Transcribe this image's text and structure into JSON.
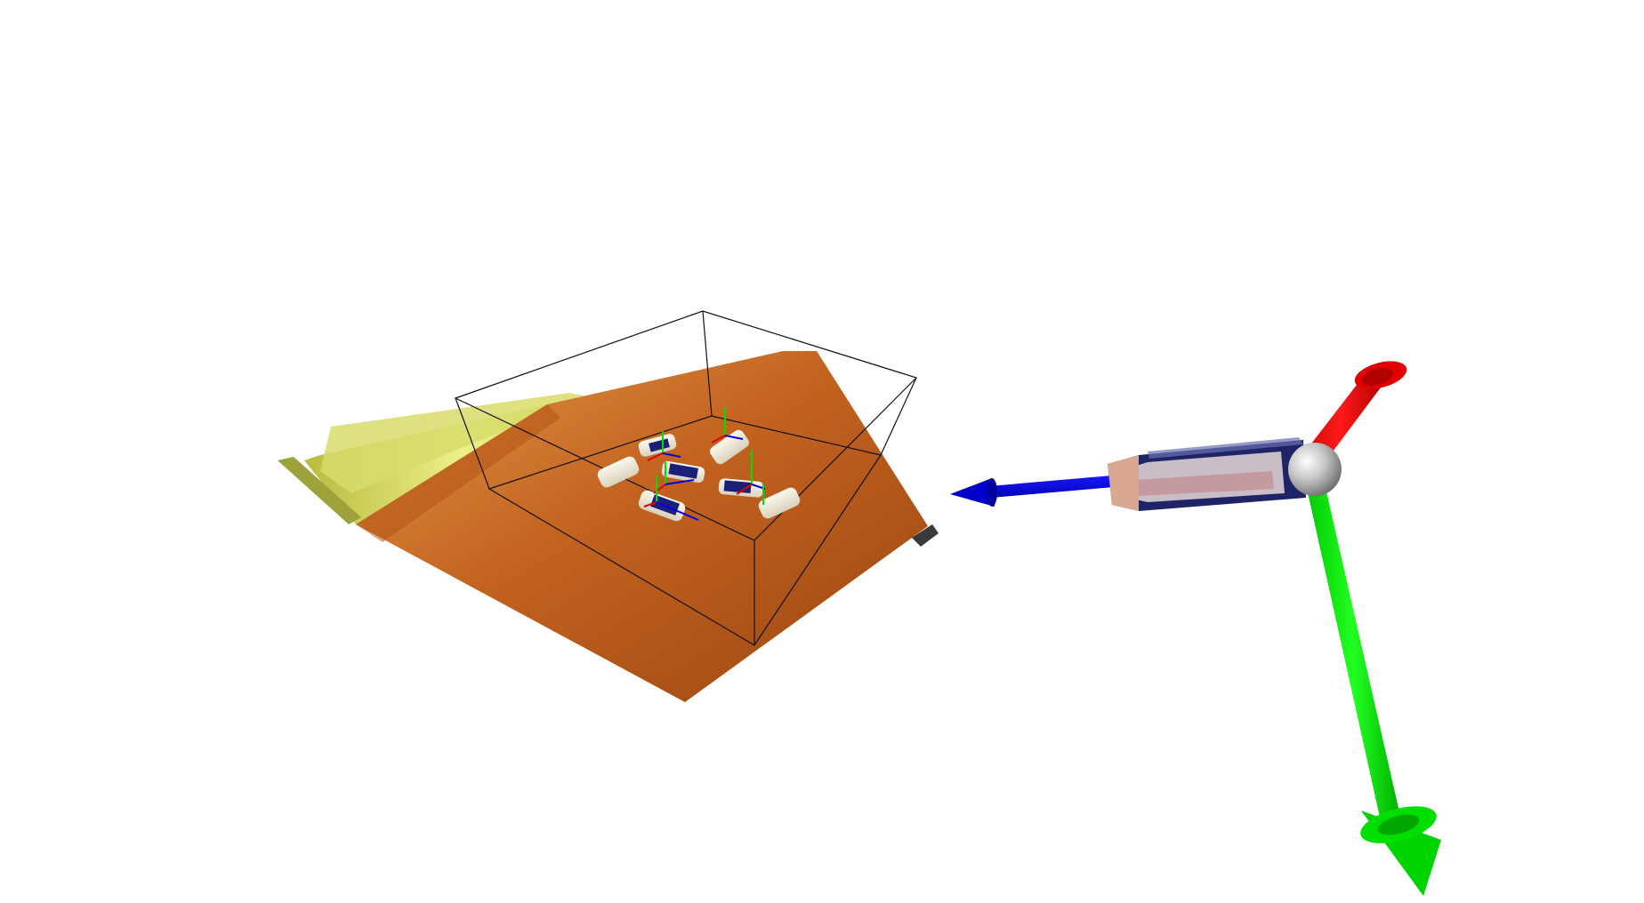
{
  "viewer": {
    "background_color": "#ffffff",
    "scene": {
      "table_surface_color": "#c2621f",
      "table_edge_color": "#d8dd5c",
      "bounding_box_color": "#111111",
      "object_colors": {
        "tube_body": "#f3eee0",
        "tube_label": "#1a1f7a"
      },
      "axis_colors": {
        "x": "#ff0000",
        "y": "#00ff00",
        "z": "#0000ff"
      },
      "origin_sphere_color": "#b8b8b8"
    },
    "gripper_frame": {
      "axes": [
        {
          "name": "x-axis-arrow",
          "color": "#ff0000"
        },
        {
          "name": "y-axis-arrow",
          "color": "#00ff00"
        },
        {
          "name": "z-axis-arrow",
          "color": "#0000ff"
        }
      ]
    }
  }
}
